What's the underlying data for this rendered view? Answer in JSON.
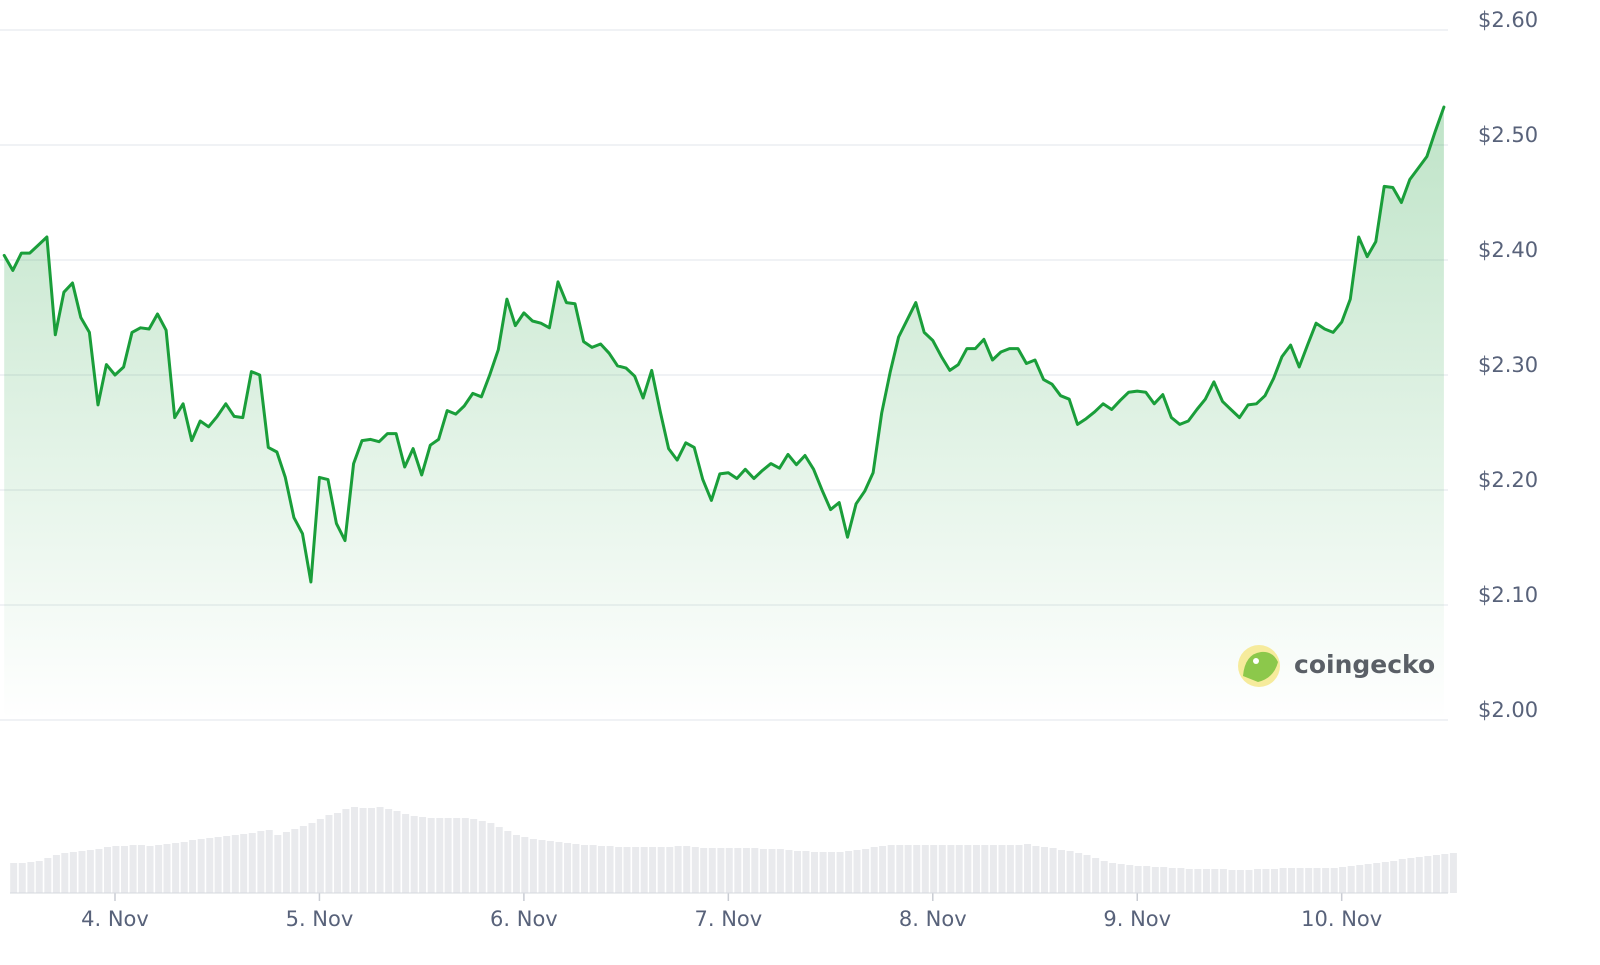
{
  "chart_data": {
    "type": "line",
    "watermark": "coingecko",
    "x": [
      3.458,
      3.5,
      3.542,
      3.583,
      3.625,
      3.667,
      3.708,
      3.75,
      3.792,
      3.833,
      3.875,
      3.917,
      3.958,
      4,
      4.042,
      4.083,
      4.125,
      4.167,
      4.208,
      4.25,
      4.292,
      4.333,
      4.375,
      4.417,
      4.458,
      4.5,
      4.542,
      4.583,
      4.625,
      4.667,
      4.708,
      4.75,
      4.792,
      4.833,
      4.875,
      4.917,
      4.958,
      5,
      5.042,
      5.083,
      5.125,
      5.167,
      5.208,
      5.25,
      5.292,
      5.333,
      5.375,
      5.417,
      5.458,
      5.5,
      5.542,
      5.583,
      5.625,
      5.667,
      5.708,
      5.75,
      5.792,
      5.833,
      5.875,
      5.917,
      5.958,
      6,
      6.042,
      6.083,
      6.125,
      6.167,
      6.208,
      6.25,
      6.292,
      6.333,
      6.375,
      6.417,
      6.458,
      6.5,
      6.542,
      6.583,
      6.625,
      6.667,
      6.708,
      6.75,
      6.792,
      6.833,
      6.875,
      6.917,
      6.958,
      7,
      7.042,
      7.083,
      7.125,
      7.167,
      7.208,
      7.25,
      7.292,
      7.333,
      7.375,
      7.417,
      7.458,
      7.5,
      7.542,
      7.583,
      7.625,
      7.667,
      7.708,
      7.75,
      7.792,
      7.833,
      7.875,
      7.917,
      7.958,
      8,
      8.042,
      8.083,
      8.125,
      8.167,
      8.208,
      8.25,
      8.292,
      8.333,
      8.375,
      8.417,
      8.458,
      8.5,
      8.542,
      8.583,
      8.625,
      8.667,
      8.708,
      8.75,
      8.792,
      8.833,
      8.875,
      8.917,
      8.958,
      9,
      9.042,
      9.083,
      9.125,
      9.167,
      9.208,
      9.25,
      9.292,
      9.333,
      9.375,
      9.417,
      9.458,
      9.5,
      9.542,
      9.583,
      9.625,
      9.667,
      9.708,
      9.75,
      9.792,
      9.833,
      9.875,
      9.917,
      9.958,
      10,
      10.042,
      10.083,
      10.125,
      10.167,
      10.208,
      10.25,
      10.292,
      10.333,
      10.375,
      10.417,
      10.458,
      10.5
    ],
    "series": [
      {
        "color": "#1a9e3a",
        "values": [
          2.404,
          2.391,
          2.406,
          2.406,
          2.413,
          2.42,
          2.335,
          2.372,
          2.38,
          2.35,
          2.337,
          2.274,
          2.309,
          2.3,
          2.307,
          2.337,
          2.341,
          2.34,
          2.353,
          2.339,
          2.263,
          2.275,
          2.243,
          2.26,
          2.255,
          2.264,
          2.275,
          2.264,
          2.263,
          2.303,
          2.3,
          2.237,
          2.233,
          2.211,
          2.176,
          2.162,
          2.12,
          2.211,
          2.209,
          2.171,
          2.156,
          2.223,
          2.243,
          2.244,
          2.242,
          2.249,
          2.249,
          2.22,
          2.236,
          2.213,
          2.239,
          2.244,
          2.269,
          2.266,
          2.273,
          2.284,
          2.281,
          2.3,
          2.322,
          2.366,
          2.343,
          2.354,
          2.347,
          2.345,
          2.341,
          2.381,
          2.363,
          2.362,
          2.329,
          2.324,
          2.327,
          2.319,
          2.308,
          2.306,
          2.299,
          2.28,
          2.304,
          2.268,
          2.236,
          2.226,
          2.241,
          2.237,
          2.209,
          2.191,
          2.214,
          2.215,
          2.21,
          2.218,
          2.21,
          2.217,
          2.223,
          2.219,
          2.231,
          2.222,
          2.23,
          2.218,
          2.2,
          2.183,
          2.189,
          2.159,
          2.188,
          2.199,
          2.215,
          2.267,
          2.303,
          2.333,
          2.348,
          2.363,
          2.337,
          2.33,
          2.316,
          2.304,
          2.309,
          2.323,
          2.323,
          2.331,
          2.313,
          2.32,
          2.323,
          2.323,
          2.31,
          2.313,
          2.296,
          2.292,
          2.282,
          2.279,
          2.257,
          2.262,
          2.268,
          2.275,
          2.27,
          2.278,
          2.285,
          2.286,
          2.285,
          2.275,
          2.283,
          2.263,
          2.257,
          2.26,
          2.27,
          2.279,
          2.294,
          2.277,
          2.27,
          2.263,
          2.274,
          2.275,
          2.282,
          2.297,
          2.316,
          2.326,
          2.307,
          2.326,
          2.345,
          2.34,
          2.337,
          2.346,
          2.366,
          2.42,
          2.403,
          2.416,
          2.464,
          2.463,
          2.45,
          2.47,
          2.48,
          2.49,
          2.512,
          2.533
        ]
      }
    ],
    "volume": {
      "color": "#e9eaed",
      "values": [
        30,
        30,
        31,
        32,
        35,
        38,
        40,
        41,
        42,
        43,
        44,
        46,
        47,
        47,
        48,
        48,
        47,
        48,
        49,
        50,
        51,
        53,
        54,
        55,
        56,
        57,
        58,
        59,
        60,
        62,
        63,
        58,
        61,
        64,
        67,
        70,
        74,
        78,
        80,
        84,
        86,
        85,
        85,
        86,
        84,
        82,
        79,
        77,
        76,
        75,
        75,
        75,
        75,
        75,
        74,
        72,
        70,
        66,
        62,
        58,
        56,
        54,
        53,
        52,
        51,
        50,
        49,
        48,
        48,
        47,
        47,
        46,
        46,
        46,
        46,
        46,
        46,
        46,
        47,
        47,
        46,
        45,
        45,
        45,
        45,
        45,
        45,
        45,
        44,
        44,
        44,
        43,
        42,
        42,
        41,
        41,
        41,
        41,
        42,
        43,
        44,
        46,
        47,
        48,
        48,
        48,
        48,
        48,
        48,
        48,
        48,
        48,
        48,
        48,
        48,
        48,
        48,
        48,
        48,
        49,
        47,
        46,
        45,
        43,
        42,
        40,
        38,
        35,
        32,
        30,
        29,
        28,
        27,
        27,
        26,
        26,
        25,
        25,
        24,
        24,
        24,
        24,
        24,
        23,
        23,
        23,
        24,
        24,
        24,
        25,
        25,
        25,
        25,
        25,
        25,
        25,
        26,
        27,
        28,
        29,
        30,
        31,
        32,
        34,
        35,
        36,
        37,
        38,
        39,
        40
      ]
    },
    "xlim": [
      3.44,
      10.52
    ],
    "xticks": [
      {
        "value": 4,
        "label": "4. Nov"
      },
      {
        "value": 5,
        "label": "5. Nov"
      },
      {
        "value": 6,
        "label": "6. Nov"
      },
      {
        "value": 7,
        "label": "7. Nov"
      },
      {
        "value": 8,
        "label": "8. Nov"
      },
      {
        "value": 9,
        "label": "9. Nov"
      },
      {
        "value": 10,
        "label": "10. Nov"
      }
    ],
    "ylim": [
      2.0,
      2.6
    ],
    "yticks": [
      {
        "value": 2.0,
        "label": "$2.00"
      },
      {
        "value": 2.1,
        "label": "$2.10"
      },
      {
        "value": 2.2,
        "label": "$2.20"
      },
      {
        "value": 2.3,
        "label": "$2.30"
      },
      {
        "value": 2.4,
        "label": "$2.40"
      },
      {
        "value": 2.5,
        "label": "$2.50"
      },
      {
        "value": 2.6,
        "label": "$2.60"
      }
    ],
    "grid": true
  }
}
